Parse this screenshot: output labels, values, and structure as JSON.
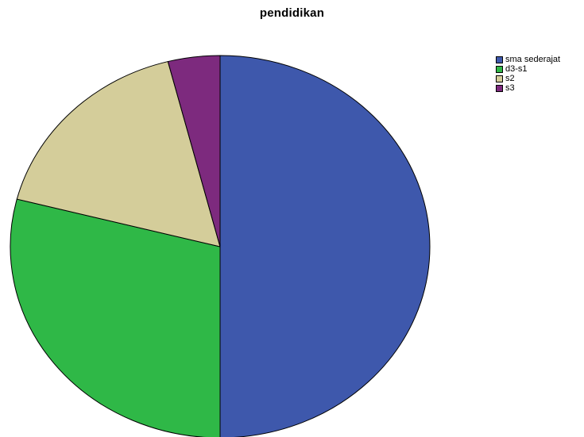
{
  "chart_data": {
    "type": "pie",
    "title": "pendidikan",
    "categories": [
      "sma sederajat",
      "d3-s1",
      "s2",
      "s3"
    ],
    "values": [
      50,
      29,
      17,
      4
    ],
    "unit": "percent",
    "colors": [
      "#3e58ac",
      "#2fb847",
      "#d4cd9a",
      "#7d2a7e"
    ],
    "start": "12 o'clock",
    "direction": "clockwise",
    "legend_position": "top-right"
  }
}
